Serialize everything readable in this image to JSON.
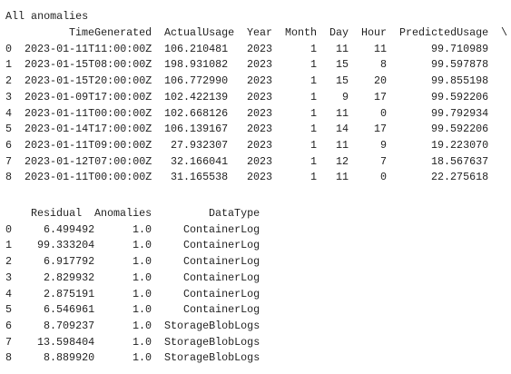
{
  "title": "All anomalies",
  "table1": {
    "columns": [
      "TimeGenerated",
      "ActualUsage",
      "Year",
      "Month",
      "Day",
      "Hour",
      "PredictedUsage"
    ],
    "continuation": "\\",
    "index": [
      "0",
      "1",
      "2",
      "3",
      "4",
      "5",
      "6",
      "7",
      "8"
    ],
    "rows": [
      [
        "2023-01-11T11:00:00Z",
        "106.210481",
        "2023",
        "1",
        "11",
        "11",
        "99.710989"
      ],
      [
        "2023-01-15T08:00:00Z",
        "198.931082",
        "2023",
        "1",
        "15",
        "8",
        "99.597878"
      ],
      [
        "2023-01-15T20:00:00Z",
        "106.772990",
        "2023",
        "1",
        "15",
        "20",
        "99.855198"
      ],
      [
        "2023-01-09T17:00:00Z",
        "102.422139",
        "2023",
        "1",
        "9",
        "17",
        "99.592206"
      ],
      [
        "2023-01-11T00:00:00Z",
        "102.668126",
        "2023",
        "1",
        "11",
        "0",
        "99.792934"
      ],
      [
        "2023-01-14T17:00:00Z",
        "106.139167",
        "2023",
        "1",
        "14",
        "17",
        "99.592206"
      ],
      [
        "2023-01-11T09:00:00Z",
        "27.932307",
        "2023",
        "1",
        "11",
        "9",
        "19.223070"
      ],
      [
        "2023-01-12T07:00:00Z",
        "32.166041",
        "2023",
        "1",
        "12",
        "7",
        "18.567637"
      ],
      [
        "2023-01-11T00:00:00Z",
        "31.165538",
        "2023",
        "1",
        "11",
        "0",
        "22.275618"
      ]
    ]
  },
  "table2": {
    "columns": [
      "Residual",
      "Anomalies",
      "DataType"
    ],
    "index": [
      "0",
      "1",
      "2",
      "3",
      "4",
      "5",
      "6",
      "7",
      "8"
    ],
    "rows": [
      [
        "6.499492",
        "1.0",
        "ContainerLog"
      ],
      [
        "99.333204",
        "1.0",
        "ContainerLog"
      ],
      [
        "6.917792",
        "1.0",
        "ContainerLog"
      ],
      [
        "2.829932",
        "1.0",
        "ContainerLog"
      ],
      [
        "2.875191",
        "1.0",
        "ContainerLog"
      ],
      [
        "6.546961",
        "1.0",
        "ContainerLog"
      ],
      [
        "8.709237",
        "1.0",
        "StorageBlobLogs"
      ],
      [
        "13.598404",
        "1.0",
        "StorageBlobLogs"
      ],
      [
        "8.889920",
        "1.0",
        "StorageBlobLogs"
      ]
    ]
  }
}
